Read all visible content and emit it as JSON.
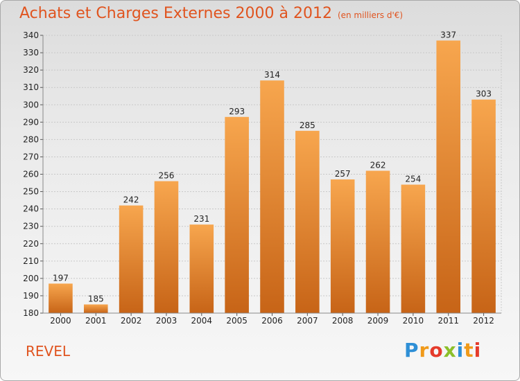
{
  "header": {
    "title": "Achats et Charges Externes 2000 à 2012",
    "unit": "(en milliers d'€)"
  },
  "place": "REVEL",
  "logo": {
    "text": "Proxiti",
    "colors": [
      "#2e8fd6",
      "#f09a1a",
      "#e53b2b",
      "#8cbf2a"
    ]
  },
  "colors": {
    "bar_top": "#f7a64e",
    "bar_bottom": "#c76417",
    "title": "#e0541f"
  },
  "chart_data": {
    "type": "bar",
    "title": "Achats et Charges Externes 2000 à 2012",
    "subtitle": "(en milliers d'€)",
    "xlabel": "",
    "ylabel": "",
    "categories": [
      "2000",
      "2001",
      "2002",
      "2003",
      "2004",
      "2005",
      "2006",
      "2007",
      "2008",
      "2009",
      "2010",
      "2011",
      "2012"
    ],
    "values": [
      197,
      185,
      242,
      256,
      231,
      293,
      314,
      285,
      257,
      262,
      254,
      337,
      303
    ],
    "ylim": [
      180,
      340
    ],
    "yticks": [
      180,
      190,
      200,
      210,
      220,
      230,
      240,
      250,
      260,
      270,
      280,
      290,
      300,
      310,
      320,
      330,
      340
    ],
    "grid": true,
    "legend": "none"
  }
}
